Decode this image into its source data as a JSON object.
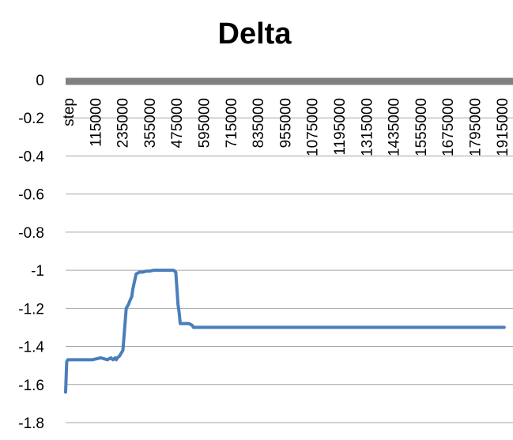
{
  "chart_data": {
    "type": "line",
    "title": "Delta",
    "xlabel": "",
    "ylabel": "",
    "ylim": [
      -1.8,
      0
    ],
    "yticks": [
      0,
      -0.2,
      -0.4,
      -0.6,
      -0.8,
      -1,
      -1.2,
      -1.4,
      -1.6,
      -1.8
    ],
    "grid": true,
    "legend": "none",
    "series_color": "#4a7ebb",
    "axis_color": "#808080",
    "x_tick_labels": [
      "step",
      "115000",
      "235000",
      "355000",
      "475000",
      "595000",
      "715000",
      "835000",
      "955000",
      "1075000",
      "1195000",
      "1315000",
      "1435000",
      "1555000",
      "1675000",
      "1795000",
      "1915000"
    ],
    "series": [
      {
        "x": [
          0,
          5000,
          10000,
          40000,
          80000,
          120000,
          160000,
          190000,
          205000,
          215000,
          225000,
          230000,
          235000,
          245000,
          260000,
          275000,
          285000,
          295000,
          300000,
          305000,
          320000,
          335000,
          350000,
          365000,
          380000,
          400000,
          430000,
          460000,
          490000,
          500000,
          510000,
          515000,
          520000,
          530000,
          545000,
          560000,
          575000,
          580000,
          600000,
          700000,
          800000,
          1000000,
          1200000,
          1400000,
          1600000,
          1800000,
          1990000
        ],
        "y": [
          -1.64,
          -1.48,
          -1.47,
          -1.47,
          -1.47,
          -1.47,
          -1.46,
          -1.47,
          -1.46,
          -1.47,
          -1.46,
          -1.47,
          -1.46,
          -1.45,
          -1.42,
          -1.2,
          -1.18,
          -1.15,
          -1.14,
          -1.1,
          -1.02,
          -1.01,
          -1.01,
          -1.005,
          -1.005,
          -1.0,
          -1.0,
          -1.0,
          -1.0,
          -1.01,
          -1.18,
          -1.22,
          -1.28,
          -1.28,
          -1.28,
          -1.28,
          -1.29,
          -1.3,
          -1.3,
          -1.3,
          -1.3,
          -1.3,
          -1.3,
          -1.3,
          -1.3,
          -1.3,
          -1.3
        ]
      }
    ]
  }
}
